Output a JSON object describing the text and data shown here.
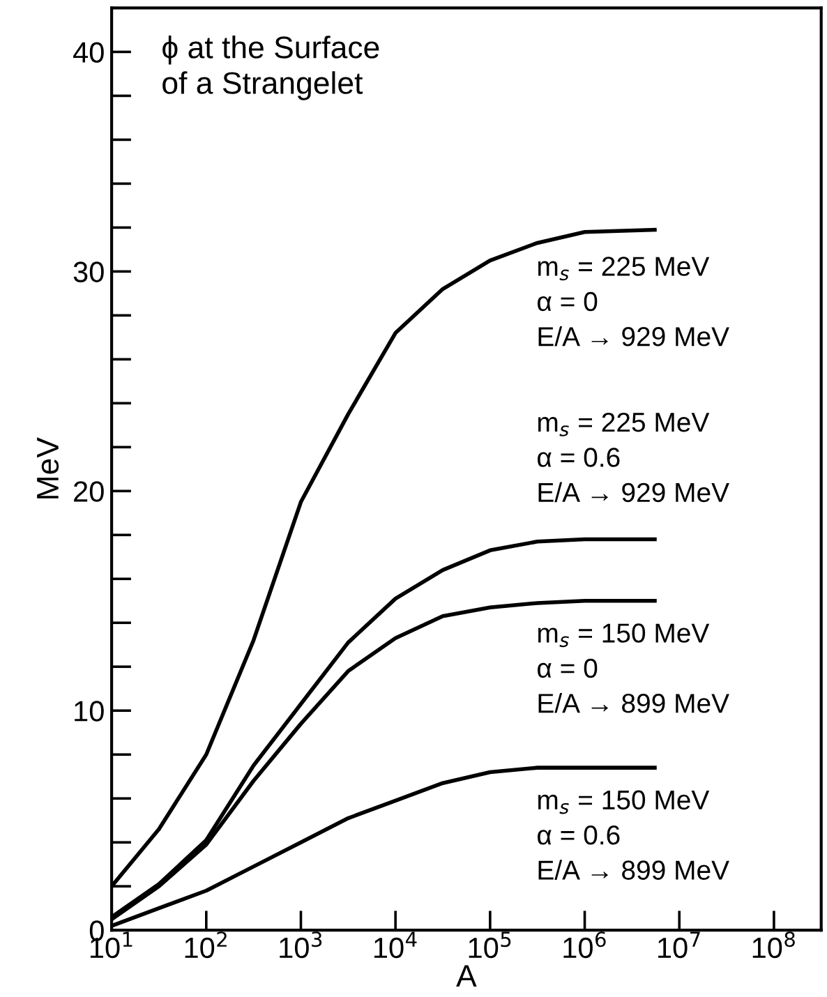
{
  "chart_data": {
    "type": "line",
    "title": "ϕ at the Surface\nof a Strangelet",
    "xlabel": "A",
    "ylabel": "MeV",
    "log": "x",
    "x": [
      10,
      31.6,
      100,
      316,
      1000,
      3160,
      10000,
      31600,
      100000,
      316000,
      1000000,
      5500000
    ],
    "series": [
      {
        "name": "m$_{s}$ = 225 MeV\nα = 0\nE/A → 929 MeV",
        "color": "#000000",
        "values": [
          2.0,
          4.6,
          8.0,
          13.2,
          19.5,
          23.5,
          27.2,
          29.2,
          30.5,
          31.3,
          31.8,
          31.9
        ]
      },
      {
        "name": "m$_{s}$ = 225 MeV\nα = 0.6\nE/A → 929 MeV",
        "color": "#000000",
        "values": [
          0.6,
          2.1,
          4.1,
          7.5,
          10.3,
          13.1,
          15.1,
          16.4,
          17.3,
          17.7,
          17.8,
          17.8
        ]
      },
      {
        "name": "m$_{s}$ = 150 MeV\nα = 0\nE/A → 899 MeV",
        "color": "#000000",
        "values": [
          0.5,
          2.0,
          3.9,
          6.8,
          9.4,
          11.8,
          13.3,
          14.3,
          14.7,
          14.9,
          15.0,
          15.0
        ]
      },
      {
        "name": "m$_{s}$ = 150 MeV\nα = 0.6\nE/A → 899 MeV",
        "color": "#000000",
        "values": [
          0.2,
          1.0,
          1.8,
          2.9,
          4.0,
          5.1,
          5.9,
          6.7,
          7.2,
          7.4,
          7.4,
          7.4
        ]
      }
    ],
    "xlim": [
      10,
      316000000
    ],
    "xticks": [
      {
        "value": 10,
        "label": "10$^{1}$"
      },
      {
        "value": 100,
        "label": "10$^{2}$"
      },
      {
        "value": 1000,
        "label": "10$^{3}$"
      },
      {
        "value": 10000,
        "label": "10$^{4}$"
      },
      {
        "value": 100000,
        "label": "10$^{5}$"
      },
      {
        "value": 1000000,
        "label": "10$^{6}$"
      },
      {
        "value": 10000000,
        "label": "10$^{7}$"
      },
      {
        "value": 100000000,
        "label": "10$^{8}$"
      }
    ],
    "ylim": [
      0,
      42
    ],
    "yticks": [
      0,
      {
        "value": 2,
        "label": null
      },
      {
        "value": 4,
        "label": null
      },
      {
        "value": 6,
        "label": null
      },
      {
        "value": 8,
        "label": null
      },
      10,
      {
        "value": 12,
        "label": null
      },
      {
        "value": 14,
        "label": null
      },
      {
        "value": 16,
        "label": null
      },
      {
        "value": 18,
        "label": null
      },
      20,
      {
        "value": 22,
        "label": null
      },
      {
        "value": 24,
        "label": null
      },
      {
        "value": 26,
        "label": null
      },
      {
        "value": 28,
        "label": null
      },
      30,
      {
        "value": 32,
        "label": null
      },
      {
        "value": 34,
        "label": null
      },
      {
        "value": 36,
        "label": null
      },
      {
        "value": 38,
        "label": null
      },
      40
    ],
    "grid": false,
    "legend": false,
    "marker": "none",
    "line_style": "solid"
  }
}
